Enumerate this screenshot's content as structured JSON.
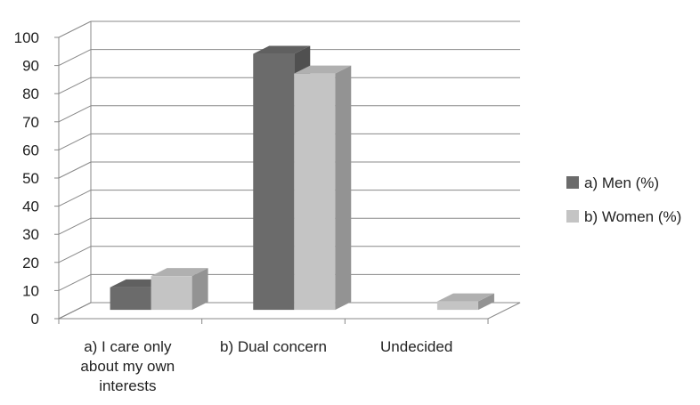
{
  "chart_data": {
    "type": "bar",
    "title": "",
    "xlabel": "",
    "ylabel": "",
    "categories": [
      [
        "a) I care only",
        "about my own",
        "interests"
      ],
      [
        "b) Dual concern"
      ],
      [
        "Undecided"
      ]
    ],
    "series": [
      {
        "name": "a) Men (%)",
        "values": [
          8,
          91,
          0
        ],
        "color": "#6b6b6b"
      },
      {
        "name": "b) Women (%)",
        "values": [
          12,
          84,
          3
        ],
        "color": "#c4c4c4"
      }
    ],
    "ylim": [
      0,
      100
    ],
    "yticks": [
      0,
      10,
      20,
      30,
      40,
      50,
      60,
      70,
      80,
      90,
      100
    ],
    "grid": true,
    "style": "3d-clustered-column",
    "legend_position": "right"
  }
}
